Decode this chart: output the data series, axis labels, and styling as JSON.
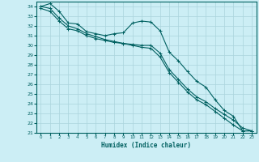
{
  "xlabel": "Humidex (Indice chaleur)",
  "background_color": "#cceef5",
  "grid_color": "#aad4dc",
  "line_color": "#006060",
  "xlim": [
    -0.5,
    23.5
  ],
  "ylim": [
    21,
    34.5
  ],
  "yticks": [
    21,
    22,
    23,
    24,
    25,
    26,
    27,
    28,
    29,
    30,
    31,
    32,
    33,
    34
  ],
  "xticks": [
    0,
    1,
    2,
    3,
    4,
    5,
    6,
    7,
    8,
    9,
    10,
    11,
    12,
    13,
    14,
    15,
    16,
    17,
    18,
    19,
    20,
    21,
    22,
    23
  ],
  "series1_x": [
    0,
    1,
    2,
    3,
    4,
    5,
    6,
    7,
    8,
    9,
    10,
    11,
    12,
    13,
    14,
    15,
    16,
    17,
    18,
    19,
    20,
    21,
    22,
    23
  ],
  "series1_y": [
    34.0,
    34.3,
    33.5,
    32.3,
    32.2,
    31.4,
    31.2,
    31.0,
    31.2,
    31.3,
    32.3,
    32.5,
    32.4,
    31.5,
    29.3,
    28.4,
    27.3,
    26.3,
    25.7,
    24.4,
    23.3,
    22.7,
    21.2,
    21.2
  ],
  "series2_x": [
    0,
    1,
    2,
    3,
    4,
    5,
    6,
    7,
    8,
    9,
    10,
    11,
    12,
    13,
    14,
    15,
    16,
    17,
    18,
    19,
    20,
    21,
    22,
    23
  ],
  "series2_y": [
    33.8,
    33.5,
    32.5,
    31.7,
    31.5,
    31.0,
    30.7,
    30.5,
    30.3,
    30.2,
    30.1,
    30.0,
    30.0,
    29.2,
    27.5,
    26.5,
    25.5,
    24.7,
    24.2,
    23.5,
    22.9,
    22.3,
    21.5,
    21.2
  ],
  "series3_x": [
    0,
    1,
    2,
    3,
    4,
    5,
    6,
    7,
    8,
    9,
    10,
    11,
    12,
    13,
    14,
    15,
    16,
    17,
    18,
    19,
    20,
    21,
    22,
    23
  ],
  "series3_y": [
    34.0,
    33.8,
    32.8,
    32.0,
    31.7,
    31.2,
    30.9,
    30.6,
    30.4,
    30.2,
    30.0,
    29.8,
    29.7,
    28.8,
    27.2,
    26.2,
    25.2,
    24.4,
    23.9,
    23.2,
    22.5,
    21.8,
    21.2,
    21.2
  ]
}
